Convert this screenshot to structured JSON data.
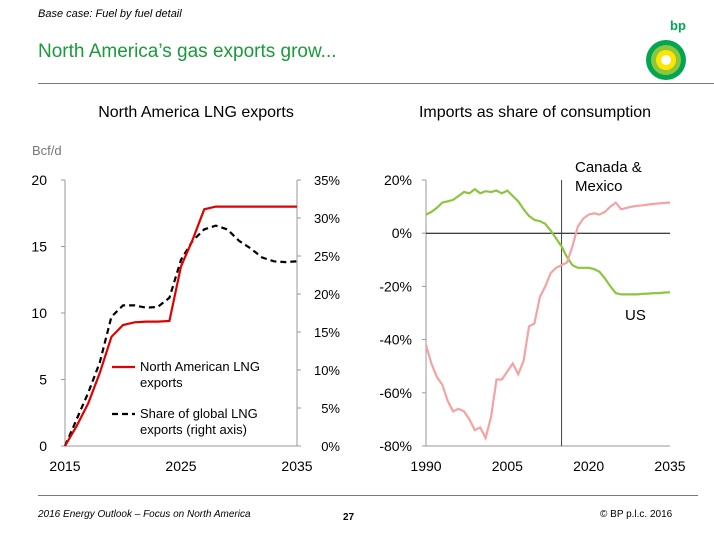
{
  "header": {
    "case_label": "Base case: Fuel by fuel detail",
    "title": "North America’s gas exports grow...",
    "logo_text": "bp"
  },
  "footer": {
    "left_text": "2016 Energy Outlook – Focus on North America",
    "page_number": "27",
    "copyright": "© BP p.l.c. 2016"
  },
  "colors": {
    "title_green": "#1a9a3a",
    "lng_red": "#e00000",
    "share_black": "#000000",
    "canada_mexico_green": "#8cc63f",
    "us_pink": "#f4a3a3",
    "logo_green": "#00a650",
    "logo_yellow": "#ffe600"
  },
  "chart_data": [
    {
      "type": "line",
      "title": "North America LNG exports",
      "ylabel": "Bcf/d",
      "ylim": [
        0,
        20
      ],
      "y_ticks": [
        "0",
        "5",
        "10",
        "15",
        "20"
      ],
      "y2lim": [
        0,
        35
      ],
      "y2_ticks": [
        "0%",
        "5%",
        "10%",
        "15%",
        "20%",
        "25%",
        "30%",
        "35%"
      ],
      "xlim": [
        2015,
        2035
      ],
      "x_ticks": [
        "2015",
        "2025",
        "2035"
      ],
      "grid": false,
      "legend_position": "bottom-right",
      "series": [
        {
          "name": "North American LNG exports",
          "axis": "left",
          "style": "solid",
          "color": "#e00000",
          "points": [
            [
              2015,
              0
            ],
            [
              2016,
              1.5
            ],
            [
              2017,
              3.2
            ],
            [
              2018,
              5.5
            ],
            [
              2019,
              8.2
            ],
            [
              2020,
              9.1
            ],
            [
              2021,
              9.3
            ],
            [
              2022,
              9.35
            ],
            [
              2023,
              9.35
            ],
            [
              2024,
              9.4
            ],
            [
              2025,
              13.5
            ],
            [
              2026,
              15.5
            ],
            [
              2027,
              17.8
            ],
            [
              2028,
              18
            ],
            [
              2029,
              18
            ],
            [
              2030,
              18
            ],
            [
              2031,
              18
            ],
            [
              2032,
              18
            ],
            [
              2033,
              18
            ],
            [
              2034,
              18
            ],
            [
              2035,
              18
            ]
          ]
        },
        {
          "name": "Share of global LNG exports (right axis)",
          "axis": "right",
          "style": "dashed",
          "color": "#000000",
          "points": [
            [
              2015,
              0
            ],
            [
              2016,
              3.5
            ],
            [
              2017,
              7
            ],
            [
              2018,
              11
            ],
            [
              2019,
              17
            ],
            [
              2020,
              18.5
            ],
            [
              2021,
              18.5
            ],
            [
              2022,
              18.2
            ],
            [
              2023,
              18.3
            ],
            [
              2024,
              19.5
            ],
            [
              2025,
              24.5
            ],
            [
              2026,
              27
            ],
            [
              2027,
              28.5
            ],
            [
              2028,
              29
            ],
            [
              2029,
              28.5
            ],
            [
              2030,
              27
            ],
            [
              2031,
              26
            ],
            [
              2032,
              24.8
            ],
            [
              2033,
              24.3
            ],
            [
              2034,
              24.2
            ],
            [
              2035,
              24.3
            ]
          ]
        }
      ],
      "legend": [
        "North American LNG exports",
        "Share of global LNG exports (right axis)"
      ]
    },
    {
      "type": "line",
      "title": "Imports as share of consumption",
      "ylim": [
        -80,
        20
      ],
      "y_ticks": [
        "-80%",
        "-60%",
        "-40%",
        "-20%",
        "0%",
        "20%"
      ],
      "xlim": [
        1990,
        2035
      ],
      "x_ticks": [
        "1990",
        "2005",
        "2020",
        "2035"
      ],
      "grid": false,
      "vertical_marker_x": 2015,
      "zero_line": true,
      "annotations": [
        "Canada & Mexico",
        "US"
      ],
      "series": [
        {
          "name": "Canada & Mexico",
          "color": "#8cc63f",
          "points": [
            [
              1990,
              7
            ],
            [
              1991,
              8
            ],
            [
              1992,
              9.5
            ],
            [
              1993,
              11.5
            ],
            [
              1994,
              12
            ],
            [
              1995,
              12.5
            ],
            [
              1996,
              14
            ],
            [
              1997,
              15.5
            ],
            [
              1998,
              15
            ],
            [
              1999,
              16.5
            ],
            [
              2000,
              15
            ],
            [
              2001,
              15.8
            ],
            [
              2002,
              15.5
            ],
            [
              2003,
              16
            ],
            [
              2004,
              15
            ],
            [
              2005,
              16
            ],
            [
              2006,
              14
            ],
            [
              2007,
              12
            ],
            [
              2008,
              9
            ],
            [
              2009,
              6.5
            ],
            [
              2010,
              5
            ],
            [
              2011,
              4.5
            ],
            [
              2012,
              3.5
            ],
            [
              2013,
              1
            ],
            [
              2014,
              -2
            ],
            [
              2015,
              -5
            ],
            [
              2016,
              -9
            ],
            [
              2017,
              -12
            ],
            [
              2018,
              -13
            ],
            [
              2019,
              -13
            ],
            [
              2020,
              -13
            ],
            [
              2021,
              -13.5
            ],
            [
              2022,
              -14.5
            ],
            [
              2023,
              -17
            ],
            [
              2024,
              -20
            ],
            [
              2025,
              -22.5
            ],
            [
              2026,
              -23
            ],
            [
              2027,
              -23
            ],
            [
              2028,
              -23
            ],
            [
              2029,
              -23
            ],
            [
              2030,
              -22.8
            ],
            [
              2031,
              -22.7
            ],
            [
              2032,
              -22.5
            ],
            [
              2033,
              -22.5
            ],
            [
              2034,
              -22.3
            ],
            [
              2035,
              -22.2
            ]
          ]
        },
        {
          "name": "US",
          "color": "#f4a3a3",
          "points": [
            [
              1990,
              -42
            ],
            [
              1991,
              -49
            ],
            [
              1992,
              -54
            ],
            [
              1993,
              -57
            ],
            [
              1994,
              -63
            ],
            [
              1995,
              -67
            ],
            [
              1996,
              -66
            ],
            [
              1997,
              -67
            ],
            [
              1998,
              -70
            ],
            [
              1999,
              -74
            ],
            [
              2000,
              -73
            ],
            [
              2001,
              -77
            ],
            [
              2002,
              -69
            ],
            [
              2003,
              -55
            ],
            [
              2004,
              -55
            ],
            [
              2005,
              -52
            ],
            [
              2006,
              -49
            ],
            [
              2007,
              -53
            ],
            [
              2008,
              -48
            ],
            [
              2009,
              -35
            ],
            [
              2010,
              -34
            ],
            [
              2011,
              -24
            ],
            [
              2012,
              -20
            ],
            [
              2013,
              -15
            ],
            [
              2014,
              -13
            ],
            [
              2015,
              -12
            ],
            [
              2016,
              -11
            ],
            [
              2017,
              -5
            ],
            [
              2018,
              2.5
            ],
            [
              2019,
              5.5
            ],
            [
              2020,
              7
            ],
            [
              2021,
              7.5
            ],
            [
              2022,
              7
            ],
            [
              2023,
              8
            ],
            [
              2024,
              10
            ],
            [
              2025,
              11.5
            ],
            [
              2026,
              9
            ],
            [
              2027,
              9.5
            ],
            [
              2028,
              10
            ],
            [
              2029,
              10.3
            ],
            [
              2030,
              10.5
            ],
            [
              2031,
              10.8
            ],
            [
              2032,
              11
            ],
            [
              2033,
              11.2
            ],
            [
              2034,
              11.4
            ],
            [
              2035,
              11.5
            ]
          ]
        }
      ]
    }
  ]
}
